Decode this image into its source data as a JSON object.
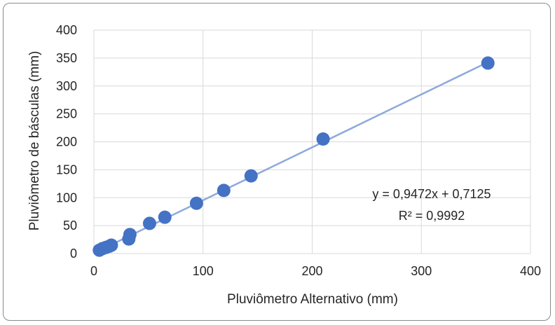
{
  "chart_data": {
    "type": "scatter",
    "xlabel": "Pluviômetro Alternativo (mm)",
    "ylabel": "Pluviômetro de básculas (mm)",
    "xlim": [
      0,
      400
    ],
    "ylim": [
      0,
      400
    ],
    "x_ticks": [
      "0",
      "100",
      "200",
      "300",
      "400"
    ],
    "y_ticks": [
      "0",
      "50",
      "100",
      "150",
      "200",
      "250",
      "300",
      "350",
      "400"
    ],
    "grid": true,
    "series": [
      {
        "color": "#4472c4",
        "points": [
          {
            "x": 5,
            "y": 6
          },
          {
            "x": 8,
            "y": 9
          },
          {
            "x": 11,
            "y": 11
          },
          {
            "x": 14,
            "y": 13
          },
          {
            "x": 16,
            "y": 15
          },
          {
            "x": 32,
            "y": 26
          },
          {
            "x": 33,
            "y": 34
          },
          {
            "x": 51,
            "y": 54
          },
          {
            "x": 65,
            "y": 65
          },
          {
            "x": 94,
            "y": 90
          },
          {
            "x": 119,
            "y": 113
          },
          {
            "x": 144,
            "y": 139
          },
          {
            "x": 210,
            "y": 205
          },
          {
            "x": 361,
            "y": 341
          }
        ]
      }
    ],
    "trendline": {
      "slope": 0.9472,
      "intercept": 0.7125,
      "x_range": [
        4,
        361
      ],
      "color": "#8ea9db",
      "equation": "y = 0,9472x + 0,7125",
      "r2": "R² = 0,9992"
    }
  }
}
